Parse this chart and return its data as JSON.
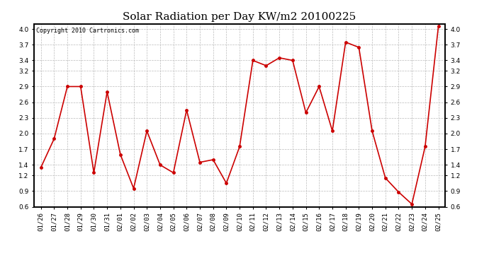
{
  "title": "Solar Radiation per Day KW/m2 20100225",
  "copyright": "Copyright 2010 Cartronics.com",
  "dates": [
    "01/26",
    "01/27",
    "01/28",
    "01/29",
    "01/30",
    "01/31",
    "02/01",
    "02/02",
    "02/03",
    "02/04",
    "02/05",
    "02/06",
    "02/07",
    "02/08",
    "02/09",
    "02/10",
    "02/11",
    "02/12",
    "02/13",
    "02/14",
    "02/15",
    "02/16",
    "02/17",
    "02/18",
    "02/19",
    "02/20",
    "02/21",
    "02/22",
    "02/23",
    "02/24",
    "02/25"
  ],
  "values": [
    1.35,
    1.9,
    2.9,
    2.9,
    1.25,
    2.8,
    1.6,
    0.95,
    2.05,
    1.4,
    1.25,
    2.45,
    1.45,
    1.5,
    1.05,
    1.75,
    3.4,
    3.3,
    3.45,
    3.4,
    2.4,
    2.9,
    2.05,
    3.75,
    3.65,
    2.05,
    1.15,
    0.88,
    0.65,
    1.75,
    4.05
  ],
  "line_color": "#cc0000",
  "marker": "o",
  "marker_size": 2.5,
  "line_width": 1.2,
  "ylim": [
    0.6,
    4.1
  ],
  "yticks": [
    0.6,
    0.9,
    1.2,
    1.4,
    1.7,
    2.0,
    2.3,
    2.6,
    2.9,
    3.2,
    3.4,
    3.7,
    4.0
  ],
  "grid_color": "#bbbbbb",
  "background_color": "#ffffff",
  "title_fontsize": 11,
  "tick_fontsize": 6.5,
  "copyright_fontsize": 6
}
